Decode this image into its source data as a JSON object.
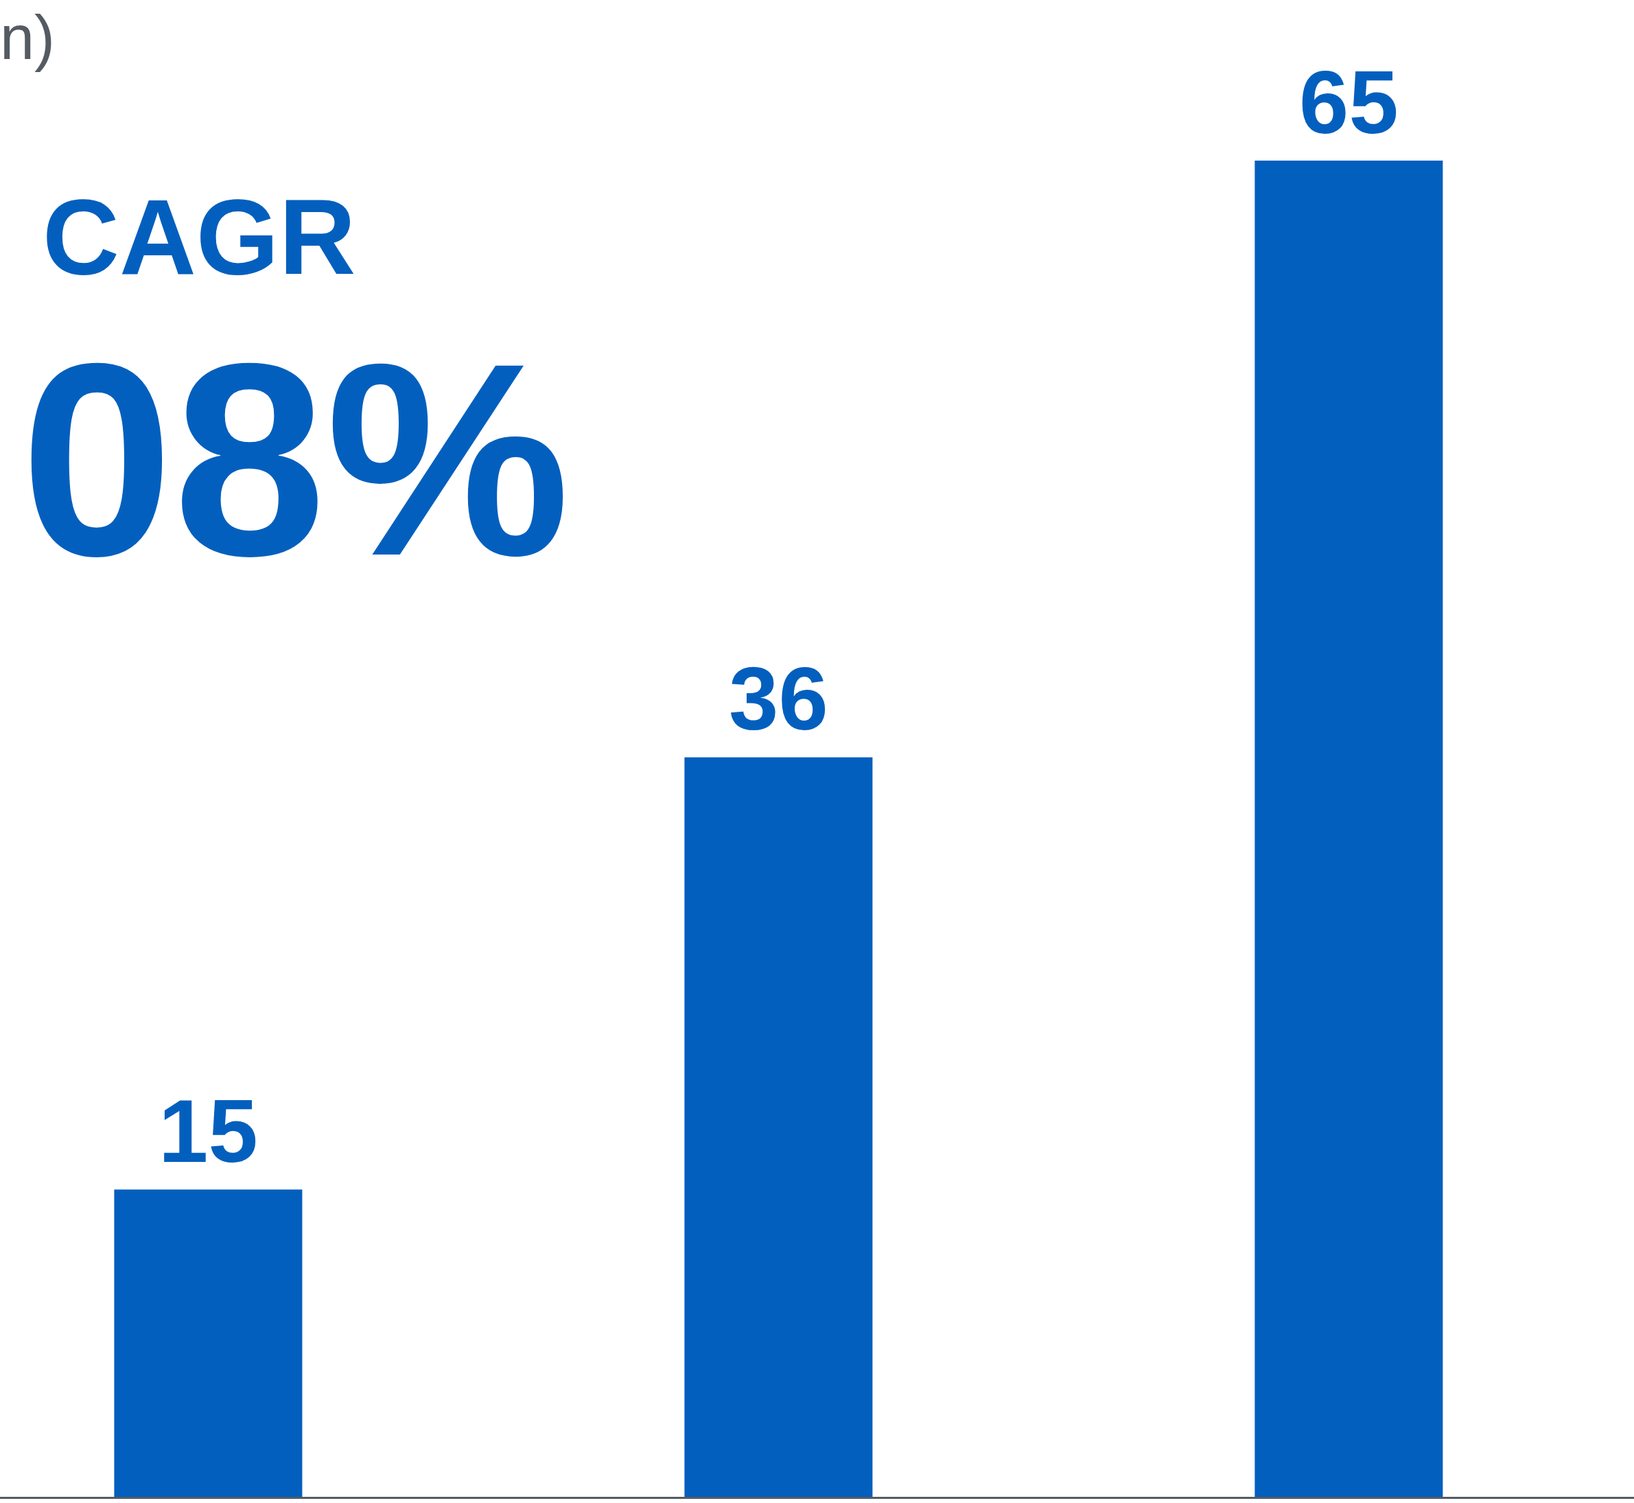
{
  "chart_data": {
    "type": "bar",
    "categories": [
      null,
      null,
      null
    ],
    "values": [
      15,
      36,
      65
    ],
    "color": "#035fbe",
    "data_labels": true,
    "annotations": [
      "n)",
      "CAGR",
      "08%"
    ]
  }
}
